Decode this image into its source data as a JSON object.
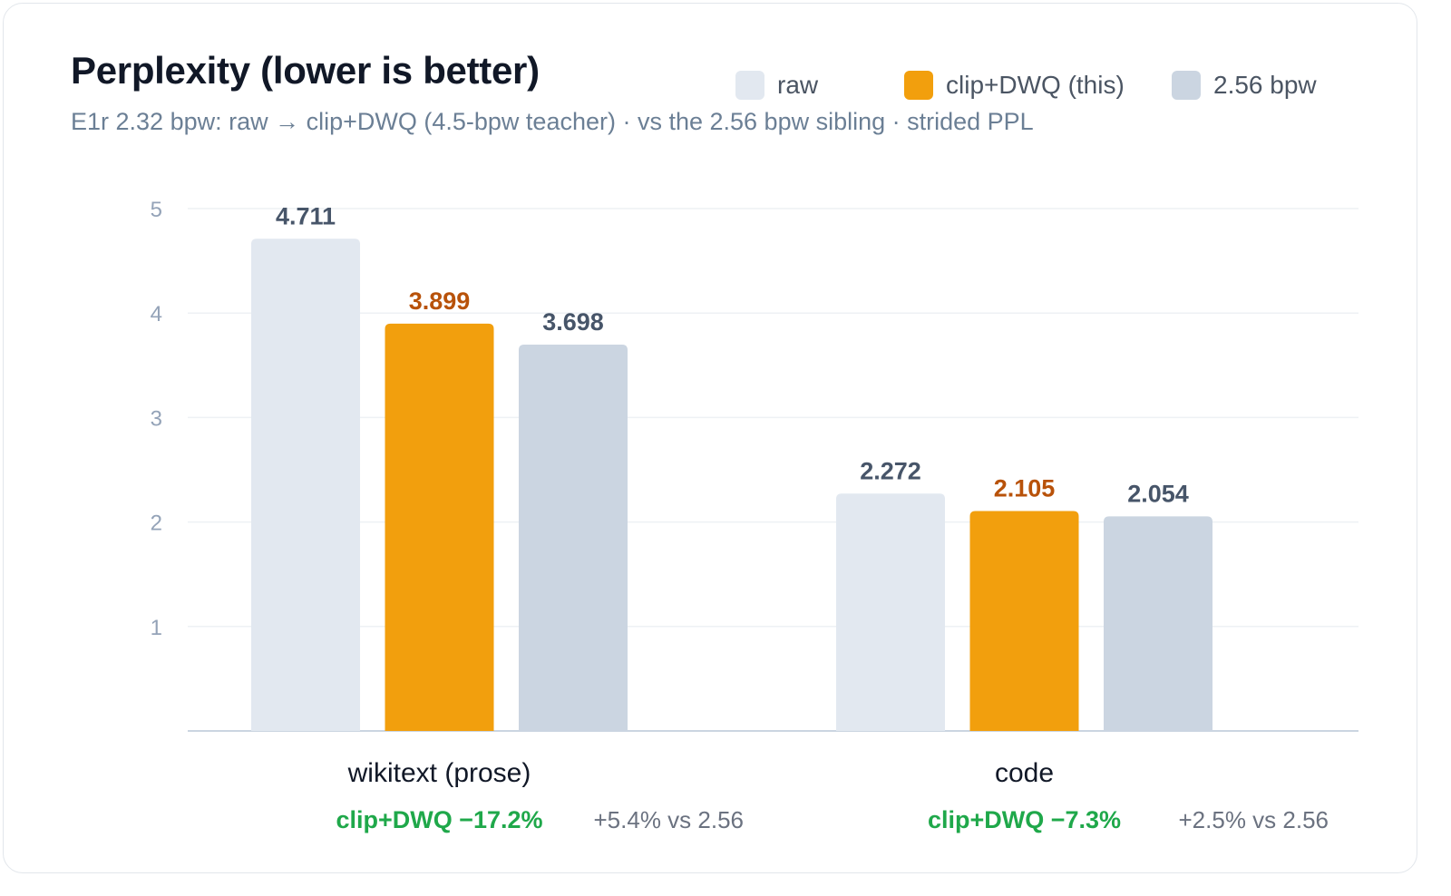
{
  "header": {
    "title": "Perplexity (lower is better)",
    "subtitle": "E1r 2.32 bpw: raw → clip+DWQ (4.5-bpw teacher) · vs the 2.56 bpw sibling · strided PPL"
  },
  "colors": {
    "raw": "#e2e8f0",
    "clip_dwq": "#f29f0d",
    "sibling": "#cbd5e1",
    "raw_label": "#475569",
    "clip_label": "#b8520a",
    "sibling_label": "#475569",
    "tick": "#94a3b8",
    "grid": "#eef1f4",
    "axis": "#cbd5e1",
    "improve": "#1fa84a",
    "delta": "#6b7280",
    "category": "#111827"
  },
  "chart_data": {
    "type": "bar",
    "title": "Perplexity (lower is better)",
    "categories": [
      "wikitext (prose)",
      "code"
    ],
    "series": [
      {
        "name": "raw",
        "values": [
          4.711,
          2.272
        ],
        "labels": [
          "4.711",
          "2.272"
        ]
      },
      {
        "name": "clip+DWQ (this)",
        "values": [
          3.899,
          2.105
        ],
        "labels": [
          "3.899",
          "2.105"
        ]
      },
      {
        "name": "2.56 bpw",
        "values": [
          3.698,
          2.054
        ],
        "labels": [
          "3.698",
          "2.054"
        ]
      }
    ],
    "ylim": [
      0,
      5
    ],
    "yticks": [
      "1",
      "2",
      "3",
      "4",
      "5"
    ],
    "ytick_values": [
      1,
      2,
      3,
      4,
      5
    ],
    "grid": true,
    "legend": "top-right",
    "annotations": [
      {
        "improvement": "clip+DWQ −17.2%",
        "delta": "+5.4% vs 2.56"
      },
      {
        "improvement": "clip+DWQ −7.3%",
        "delta": "+2.5% vs 2.56"
      }
    ]
  }
}
